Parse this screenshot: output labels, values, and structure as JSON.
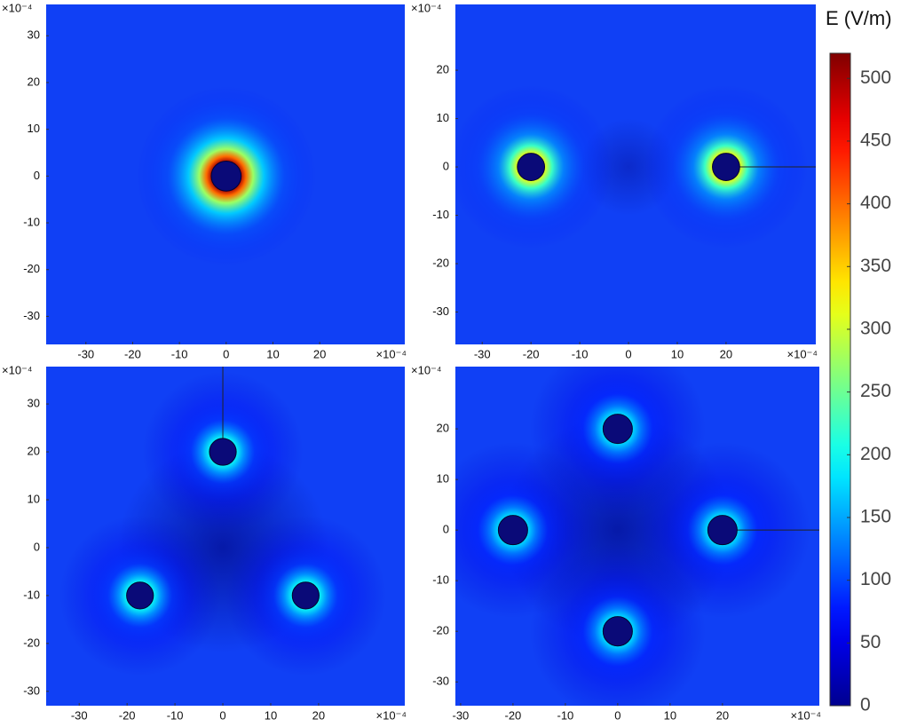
{
  "chart_data": [
    {
      "type": "field",
      "multiplier_y": "×10⁻⁴",
      "multiplier_x": "×10⁻⁴",
      "xlim": [
        -38.5,
        38.2
      ],
      "ylim": [
        -36,
        36.7
      ],
      "xticks": [
        -30,
        -20,
        -10,
        0,
        10,
        20
      ],
      "yticks": [
        -30,
        -20,
        -10,
        0,
        10,
        20,
        30
      ],
      "conductors": {
        "x": [
          0
        ],
        "y": [
          0
        ]
      },
      "conductor_radius": 3.2,
      "surface_field": 500
    },
    {
      "type": "field",
      "multiplier_y": "×10⁻⁴",
      "multiplier_x": "×10⁻⁴",
      "xlim": [
        -35.5,
        38.4
      ],
      "ylim": [
        -36.7,
        33.6
      ],
      "xticks": [
        -30,
        -20,
        -10,
        0,
        10,
        20
      ],
      "yticks": [
        -30,
        -20,
        -10,
        0,
        10,
        20
      ],
      "conductors": {
        "x": [
          -20,
          20
        ],
        "y": [
          0,
          0
        ]
      },
      "conductor_radius": 2.8,
      "surface_field": 320
    },
    {
      "type": "field",
      "multiplier_y": "×10⁻⁴",
      "multiplier_x": "×10⁻⁴",
      "xlim": [
        -36.9,
        38
      ],
      "ylim": [
        -33,
        37.8
      ],
      "xticks": [
        -30,
        -20,
        -10,
        0,
        10,
        20
      ],
      "yticks": [
        -30,
        -20,
        -10,
        0,
        10,
        20,
        30
      ],
      "conductors": {
        "x": [
          0,
          -17.3,
          17.3
        ],
        "y": [
          20,
          -10,
          -10
        ]
      },
      "conductor_radius": 2.8,
      "surface_field": 200
    },
    {
      "type": "field",
      "multiplier_y": "×10⁻⁴",
      "multiplier_x": "×10⁻⁴",
      "xlim": [
        -31,
        38.5
      ],
      "ylim": [
        -34.7,
        32.3
      ],
      "xticks": [
        -30,
        -20,
        -10,
        0,
        10,
        20
      ],
      "yticks": [
        -30,
        -20,
        -10,
        0,
        10,
        20
      ],
      "conductors": {
        "x": [
          0,
          -20,
          20,
          0
        ],
        "y": [
          20,
          0,
          0,
          -20
        ]
      },
      "conductor_radius": 2.8,
      "surface_field": 180
    },
    {
      "type": "colorbar",
      "title": "E (V/m)",
      "ylim": [
        0,
        520
      ],
      "yticks": [
        0,
        50,
        100,
        150,
        200,
        250,
        300,
        350,
        400,
        450,
        500
      ],
      "colormap": "jet"
    }
  ]
}
